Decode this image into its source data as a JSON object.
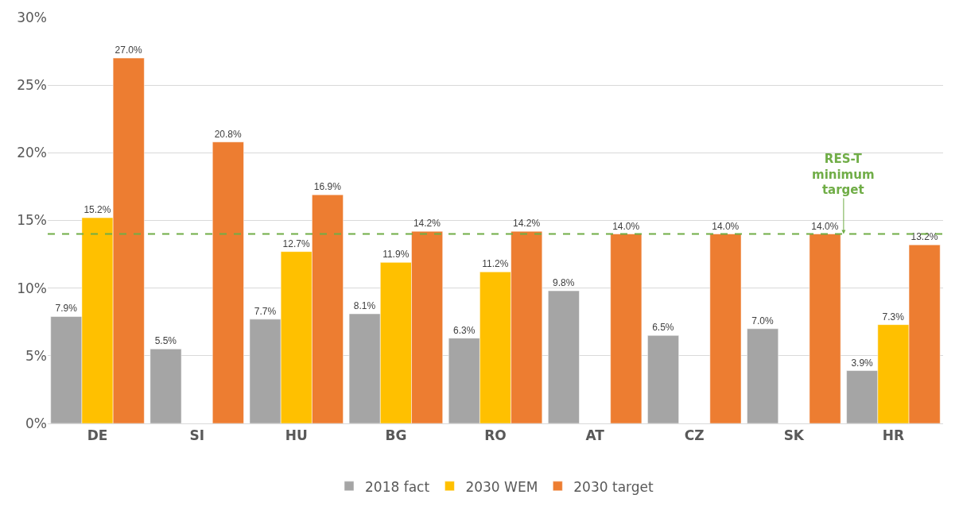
{
  "chart_data": {
    "type": "bar",
    "categories": [
      "DE",
      "SI",
      "HU",
      "BG",
      "RO",
      "AT",
      "CZ",
      "SK",
      "HR"
    ],
    "series": [
      {
        "name": "2018 fact",
        "color": "#a5a5a5",
        "values": [
          7.9,
          5.5,
          7.7,
          8.1,
          6.3,
          9.8,
          6.5,
          7.0,
          3.9
        ],
        "value_labels": [
          "7.9%",
          "5.5%",
          "7.7%",
          "8.1%",
          "6.3%",
          "9.8%",
          "6.5%",
          "7.0%",
          "3.9%"
        ]
      },
      {
        "name": "2030 WEM",
        "color": "#ffc000",
        "values": [
          15.2,
          null,
          12.7,
          11.9,
          11.2,
          null,
          null,
          null,
          7.3
        ],
        "value_labels": [
          "15.2%",
          null,
          "12.7%",
          "11.9%",
          "11.2%",
          null,
          null,
          null,
          "7.3%"
        ]
      },
      {
        "name": "2030 target",
        "color": "#ed7d31",
        "values": [
          27.0,
          20.8,
          16.9,
          14.2,
          14.2,
          14.0,
          14.0,
          14.0,
          13.2
        ],
        "value_labels": [
          "27.0%",
          "20.8%",
          "16.9%",
          "14.2%",
          "14.2%",
          "14.0%",
          "14.0%",
          "14.0%",
          "13.2%"
        ]
      }
    ],
    "ylim": [
      0,
      30
    ],
    "yticks": [
      {
        "value": 0,
        "label": "0%"
      },
      {
        "value": 5,
        "label": "5%"
      },
      {
        "value": 10,
        "label": "10%"
      },
      {
        "value": 15,
        "label": "15%"
      },
      {
        "value": 20,
        "label": "20%"
      },
      {
        "value": 25,
        "label": "25%"
      },
      {
        "value": 30,
        "label": "30%"
      }
    ],
    "grid": "y",
    "legend": "bottom",
    "ref_lines": [
      {
        "axis": "y",
        "value": 14,
        "label": "RES-T minimum target",
        "color": "#70ad47",
        "line_style": "dashed"
      }
    ]
  }
}
